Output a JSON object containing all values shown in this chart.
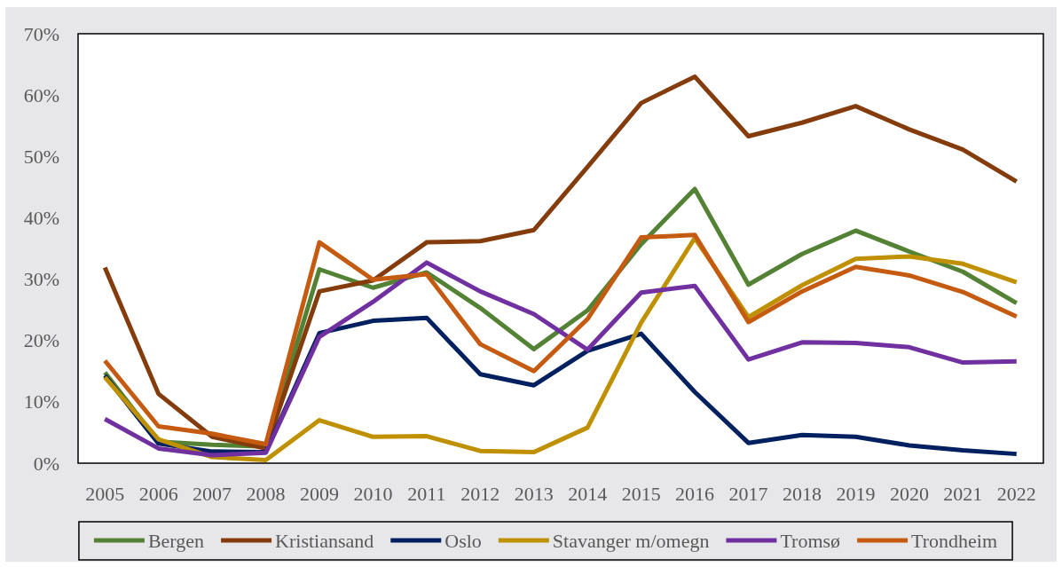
{
  "chart_data": {
    "type": "line",
    "categories": [
      "2005",
      "2006",
      "2007",
      "2008",
      "2009",
      "2010",
      "2011",
      "2012",
      "2013",
      "2014",
      "2015",
      "2016",
      "2017",
      "2018",
      "2019",
      "2020",
      "2021",
      "2022"
    ],
    "series": [
      {
        "name": "Bergen",
        "color": "#548235",
        "values": [
          14.8,
          3.5,
          3.0,
          2.7,
          31.6,
          28.6,
          31.1,
          25.3,
          18.6,
          24.9,
          35.7,
          44.7,
          29.1,
          34.1,
          37.9,
          34.5,
          31.2,
          26.1
        ]
      },
      {
        "name": "Kristiansand",
        "color": "#843c0c",
        "values": [
          31.9,
          11.3,
          4.3,
          2.4,
          28.0,
          29.8,
          36.0,
          36.2,
          38.0,
          48.3,
          58.7,
          63.0,
          53.3,
          55.5,
          58.2,
          54.4,
          51.1,
          45.9
        ]
      },
      {
        "name": "Oslo",
        "color": "#002060",
        "values": [
          14.3,
          3.2,
          1.9,
          1.8,
          21.2,
          23.2,
          23.7,
          14.5,
          12.7,
          18.3,
          21.1,
          11.6,
          3.3,
          4.6,
          4.3,
          2.9,
          2.1,
          1.5
        ]
      },
      {
        "name": "Stavanger m/omegn",
        "color": "#bf9000",
        "values": [
          14.0,
          3.9,
          1.0,
          0.5,
          7.0,
          4.3,
          4.4,
          2.0,
          1.8,
          5.8,
          22.9,
          36.7,
          23.8,
          29.0,
          33.3,
          33.7,
          32.5,
          29.5
        ]
      },
      {
        "name": "Tromsø",
        "color": "#7030a0",
        "values": [
          7.2,
          2.4,
          1.3,
          1.7,
          20.6,
          26.3,
          32.7,
          28.0,
          24.3,
          18.5,
          27.8,
          28.9,
          16.9,
          19.7,
          19.6,
          18.9,
          16.4,
          16.6
        ]
      },
      {
        "name": "Trondheim",
        "color": "#c55a11",
        "values": [
          16.7,
          6.0,
          4.8,
          3.1,
          36.0,
          29.9,
          30.8,
          19.4,
          15.0,
          23.5,
          36.8,
          37.2,
          23.0,
          28.0,
          32.0,
          30.6,
          27.9,
          23.9
        ]
      }
    ],
    "ylim": [
      0,
      70
    ],
    "yticks": [
      {
        "value": 0,
        "label": "0%"
      },
      {
        "value": 10,
        "label": "10%"
      },
      {
        "value": 20,
        "label": "20%"
      },
      {
        "value": 30,
        "label": "30%"
      },
      {
        "value": 40,
        "label": "40%"
      },
      {
        "value": 50,
        "label": "50%"
      },
      {
        "value": 60,
        "label": "60%"
      },
      {
        "value": 70,
        "label": "70%"
      }
    ],
    "legend": "bottom"
  }
}
